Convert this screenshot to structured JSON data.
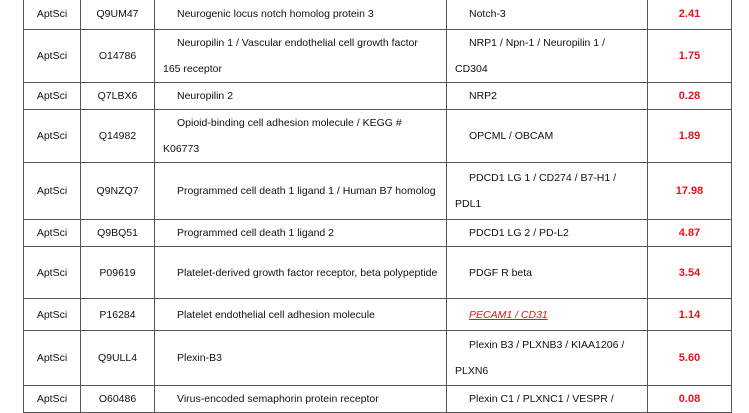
{
  "rows": [
    {
      "source": "AptSci",
      "uniprot": "Q9UM47",
      "name": "Neurogenic locus notch homolog protein 3",
      "gene": "Notch-3",
      "value": "2.41"
    },
    {
      "source": "AptSci",
      "uniprot": "O14786",
      "name": "Neuropilin 1 / Vascular endothelial cell growth factor 165 receptor",
      "gene": "NRP1 / Npn-1 / Neuropilin 1 / CD304",
      "value": "1.75"
    },
    {
      "source": "AptSci",
      "uniprot": "Q7LBX6",
      "name": "Neuropilin 2",
      "gene": "NRP2",
      "value": "0.28"
    },
    {
      "source": "AptSci",
      "uniprot": "Q14982",
      "name": "Opioid-binding cell adhesion molecule / KEGG # K06773",
      "gene": "OPCML / OBCAM",
      "value": "1.89"
    },
    {
      "source": "AptSci",
      "uniprot": "Q9NZQ7",
      "name": "Programmed cell death 1 ligand 1 / Human B7 homolog",
      "gene": "PDCD1 LG 1 / CD274 / B7-H1 / PDL1",
      "value": "17.98"
    },
    {
      "source": "AptSci",
      "uniprot": "Q9BQ51",
      "name": "Programmed cell death 1 ligand 2",
      "gene": "PDCD1 LG 2 / PD-L2",
      "value": "4.87"
    },
    {
      "source": "AptSci",
      "uniprot": "P09619",
      "name": "Platelet-derived growth factor receptor, beta polypeptide",
      "gene": "PDGF R beta",
      "value": "3.54"
    },
    {
      "source": "AptSci",
      "uniprot": "P16284",
      "name": "Platelet endothelial cell adhesion molecule",
      "gene": "PECAM1 / CD31",
      "gene_link": true,
      "value": "1.14"
    },
    {
      "source": "AptSci",
      "uniprot": "Q9ULL4",
      "name": "Plexin-B3",
      "gene": "Plexin B3 / PLXNB3 / KIAA1206 / PLXN6",
      "value": "5.60"
    },
    {
      "source": "AptSci",
      "uniprot": "O60486",
      "name": "Virus-encoded semaphorin protein receptor",
      "gene": "Plexin C1 / PLXNC1 / VESPR /",
      "value": "0.08"
    }
  ],
  "colors": {
    "value": "#e8121b",
    "link": "#e8121b"
  }
}
